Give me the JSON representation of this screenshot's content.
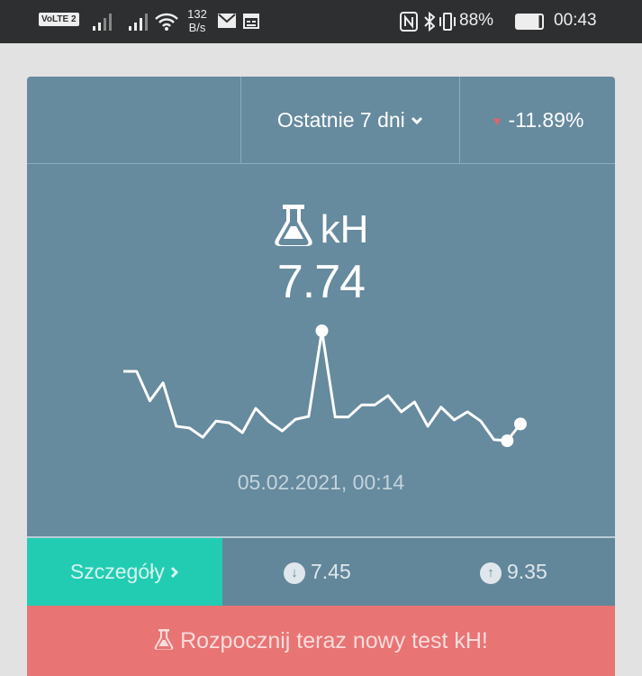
{
  "status_bar": {
    "volte": "VoLTE 2",
    "net_speed": "132 B/s",
    "battery": "88%",
    "time": "00:43"
  },
  "header": {
    "range_label": "Ostatnie 7 dni",
    "change": "-11.89%",
    "change_color": "#e8616a"
  },
  "metric": {
    "name": "kH",
    "value": "7.74",
    "timestamp": "05.02.2021, 00:14"
  },
  "chart_data": {
    "type": "line",
    "values": [
      8.65,
      8.65,
      8.14,
      8.45,
      7.7,
      7.67,
      7.51,
      7.79,
      7.76,
      7.59,
      8.01,
      7.78,
      7.62,
      7.82,
      7.87,
      9.35,
      7.86,
      7.86,
      8.07,
      8.07,
      8.23,
      7.95,
      8.12,
      7.7,
      8.03,
      7.81,
      7.95,
      7.79,
      7.47,
      7.45,
      7.74
    ],
    "ylim": [
      7.45,
      9.35
    ],
    "grid": false,
    "color": "#ffffff"
  },
  "footer": {
    "details_label": "Szczegóły",
    "min": "7.45",
    "max": "9.35",
    "cta_label": "Rozpocznij teraz nowy test kH!"
  },
  "colors": {
    "card": "#668a9e",
    "accent": "#22ccb3",
    "cta": "#e87474"
  }
}
